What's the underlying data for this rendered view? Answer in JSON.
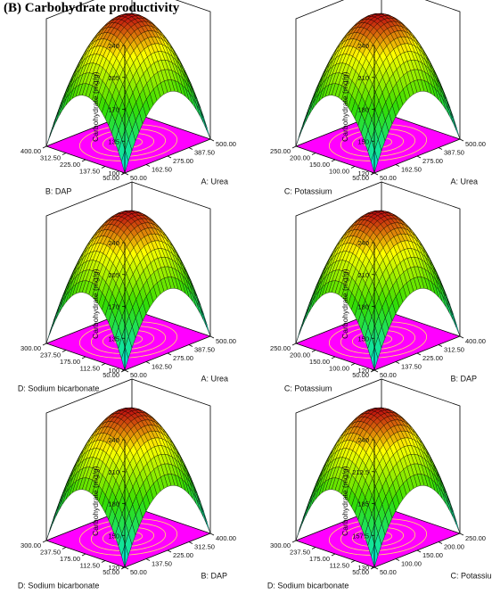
{
  "title": "(B) Carbohydrate productivity",
  "colors": {
    "floor": "#ff00ff",
    "contour": "#ffe066",
    "low": "#00e8e8",
    "mid": "#33dd00",
    "high_mid": "#ffff00",
    "top": "#c01010",
    "mesh": "#000000"
  },
  "chart_data": [
    {
      "type": "surface",
      "zlabel": "Carbohydrate (mg/g)",
      "zticks": [
        "100",
        "135",
        "170",
        "205",
        "240"
      ],
      "zlim": [
        100,
        240
      ],
      "xlabel": "A: Urea",
      "xticks": [
        "50.00",
        "162.50",
        "275.00",
        "387.50",
        "500.00"
      ],
      "ylabel": "B: DAP",
      "yticks": [
        "50.00",
        "137.50",
        "225.00",
        "312.50",
        "400.00"
      ]
    },
    {
      "type": "surface",
      "zlabel": "Carbohydrate (mg/g)",
      "zticks": [
        "120",
        "150",
        "180",
        "210",
        "240"
      ],
      "zlim": [
        120,
        240
      ],
      "xlabel": "A: Urea",
      "xticks": [
        "50.00",
        "162.50",
        "275.00",
        "387.50",
        "500.00"
      ],
      "ylabel": "C: Potassium",
      "yticks": [
        "50.00",
        "100.00",
        "150.00",
        "200.00",
        "250.00"
      ]
    },
    {
      "type": "surface",
      "zlabel": "Carbohydrate (mg/g)",
      "zticks": [
        "100",
        "135",
        "170",
        "205",
        "240"
      ],
      "zlim": [
        100,
        240
      ],
      "xlabel": "A: Urea",
      "xticks": [
        "50.00",
        "162.50",
        "275.00",
        "387.50",
        "500.00"
      ],
      "ylabel": "D: Sodium bicarbonate",
      "yticks": [
        "50.00",
        "112.50",
        "175.00",
        "237.50",
        "300.00"
      ]
    },
    {
      "type": "surface",
      "zlabel": "Carbohydrate (mg/g)",
      "zticks": [
        "120",
        "150",
        "180",
        "210",
        "240"
      ],
      "zlim": [
        120,
        240
      ],
      "xlabel": "B: DAP",
      "xticks": [
        "50.00",
        "137.50",
        "225.00",
        "312.50",
        "400.00"
      ],
      "ylabel": "C: Potassium",
      "yticks": [
        "50.00",
        "100.00",
        "150.00",
        "200.00",
        "250.00"
      ]
    },
    {
      "type": "surface",
      "zlabel": "Carbohydrate (mg/g)",
      "zticks": [
        "120",
        "150",
        "180",
        "210",
        "240"
      ],
      "zlim": [
        120,
        240
      ],
      "xlabel": "B: DAP",
      "xticks": [
        "50.00",
        "137.50",
        "225.00",
        "312.50",
        "400.00"
      ],
      "ylabel": "D: Sodium bicarbonate",
      "yticks": [
        "50.00",
        "112.50",
        "175.00",
        "237.50",
        "300.00"
      ]
    },
    {
      "type": "surface",
      "zlabel": "Carbohydrate (mg/g)",
      "zticks": [
        "130",
        "157.5",
        "185",
        "212.5",
        "240"
      ],
      "zlim": [
        130,
        240
      ],
      "xlabel": "C: Potassium",
      "xticks": [
        "50.00",
        "100.00",
        "150.00",
        "200.00",
        "250.00"
      ],
      "ylabel": "D: Sodium bicarbonate",
      "yticks": [
        "50.00",
        "112.50",
        "175.00",
        "237.50",
        "300.00"
      ]
    }
  ]
}
